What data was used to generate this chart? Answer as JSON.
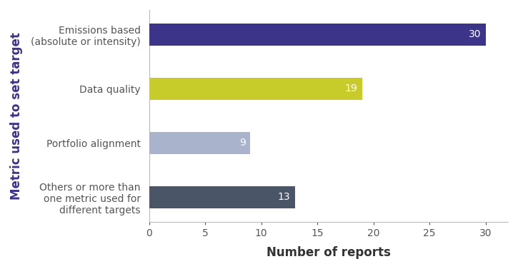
{
  "categories": [
    "Others or more than\none metric used for\ndifferent targets",
    "Portfolio alignment",
    "Data quality",
    "Emissions based\n(absolute or intensity)"
  ],
  "values": [
    13,
    9,
    19,
    30
  ],
  "bar_colors": [
    "#4a5568",
    "#a9b4cc",
    "#c8cc2a",
    "#3b3488"
  ],
  "value_labels": [
    "13",
    "9",
    "19",
    "30"
  ],
  "value_label_colors": [
    "white",
    "white",
    "white",
    "white"
  ],
  "xlabel": "Number of reports",
  "ylabel": "Metric used to set target",
  "xlim": [
    0,
    32
  ],
  "xticks": [
    0,
    5,
    10,
    15,
    20,
    25,
    30
  ],
  "background_color": "#ffffff",
  "bar_height": 0.45,
  "label_fontsize": 10,
  "axis_label_fontsize": 12,
  "value_label_fontsize": 10,
  "ylabel_fontsize": 12,
  "spine_color": "#bbbbbb",
  "tick_label_color": "#555555",
  "ylabel_color": "#3b3488",
  "category_label_color": "#555555"
}
